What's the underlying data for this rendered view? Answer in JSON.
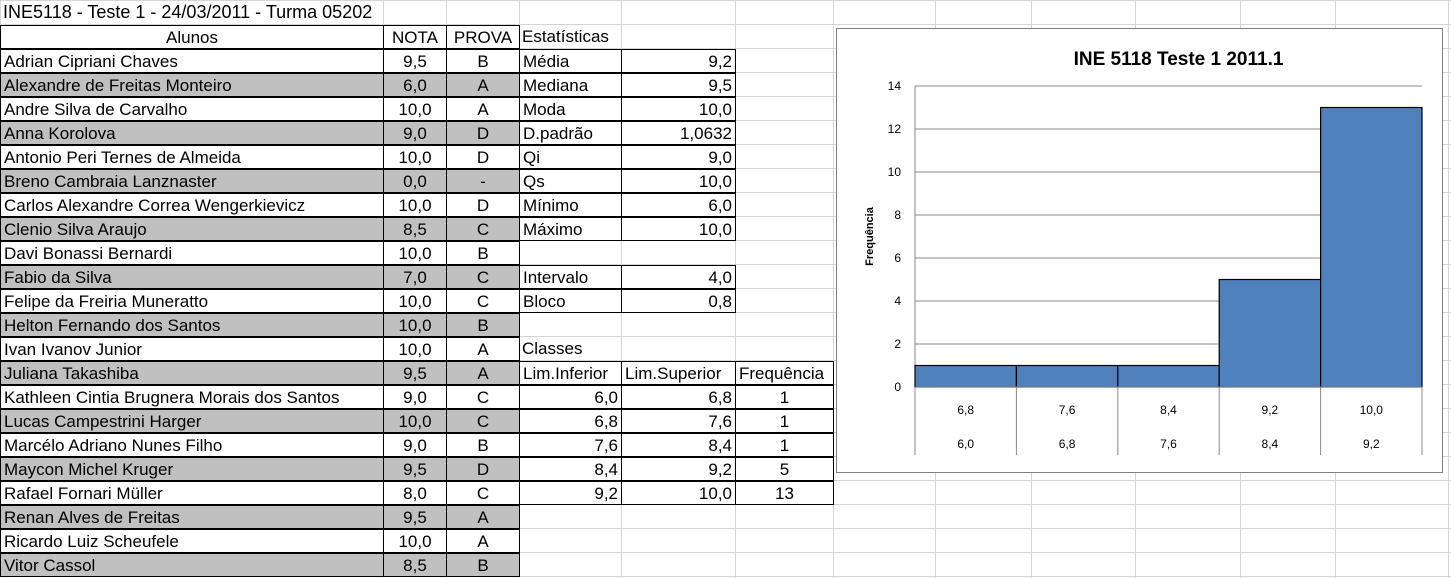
{
  "title": "INE5118 - Teste 1 - 24/03/2011 - Turma 05202",
  "headers": {
    "alunos": "Alunos",
    "nota": "NOTA",
    "prova": "PROVA",
    "estat": "Estatísticas"
  },
  "students": [
    {
      "name": "Adrian Cipriani Chaves",
      "nota": "9,5",
      "prova": "B"
    },
    {
      "name": "Alexandre de Freitas Monteiro",
      "nota": "6,0",
      "prova": "A"
    },
    {
      "name": "Andre Silva de Carvalho",
      "nota": "10,0",
      "prova": "A"
    },
    {
      "name": "Anna Korolova",
      "nota": "9,0",
      "prova": "D"
    },
    {
      "name": "Antonio Peri Ternes de Almeida",
      "nota": "10,0",
      "prova": "D"
    },
    {
      "name": "Breno Cambraia Lanznaster",
      "nota": "0,0",
      "prova": "-"
    },
    {
      "name": "Carlos Alexandre Correa Wengerkievicz",
      "nota": "10,0",
      "prova": "D"
    },
    {
      "name": "Clenio Silva Araujo",
      "nota": "8,5",
      "prova": "C"
    },
    {
      "name": "Davi Bonassi Bernardi",
      "nota": "10,0",
      "prova": "B"
    },
    {
      "name": "Fabio da Silva",
      "nota": "7,0",
      "prova": "C"
    },
    {
      "name": "Felipe da Freiria Muneratto",
      "nota": "10,0",
      "prova": "C"
    },
    {
      "name": "Helton Fernando dos Santos",
      "nota": "10,0",
      "prova": "B"
    },
    {
      "name": "Ivan Ivanov Junior",
      "nota": "10,0",
      "prova": "A"
    },
    {
      "name": "Juliana Takashiba",
      "nota": "9,5",
      "prova": "A"
    },
    {
      "name": "Kathleen Cintia Brugnera Morais dos Santos",
      "nota": "9,0",
      "prova": "C"
    },
    {
      "name": "Lucas Campestrini Harger",
      "nota": "10,0",
      "prova": "C"
    },
    {
      "name": "Marcélo Adriano Nunes Filho",
      "nota": "9,0",
      "prova": "B"
    },
    {
      "name": "Maycon Michel Kruger",
      "nota": "9,5",
      "prova": "D"
    },
    {
      "name": "Rafael Fornari Müller",
      "nota": "8,0",
      "prova": "C"
    },
    {
      "name": "Renan Alves de Freitas",
      "nota": "9,5",
      "prova": "A"
    },
    {
      "name": "Ricardo Luiz Scheufele",
      "nota": "10,0",
      "prova": "A"
    },
    {
      "name": "Vitor Cassol",
      "nota": "8,5",
      "prova": "B"
    }
  ],
  "stats": [
    {
      "label": "Média",
      "value": "9,2"
    },
    {
      "label": "Mediana",
      "value": "9,5"
    },
    {
      "label": "Moda",
      "value": "10,0"
    },
    {
      "label": "D.padrão",
      "value": "1,0632"
    },
    {
      "label": "Qi",
      "value": "9,0"
    },
    {
      "label": "Qs",
      "value": "10,0"
    },
    {
      "label": "Mínimo",
      "value": "6,0"
    },
    {
      "label": "Máximo",
      "value": "10,0"
    }
  ],
  "interval": {
    "label": "Intervalo",
    "value": "4,0"
  },
  "bloco": {
    "label": "Bloco",
    "value": "0,8"
  },
  "classes": {
    "title": "Classes",
    "headers": [
      "Lim.Inferior",
      "Lim.Superior",
      "Frequência"
    ],
    "rows": [
      [
        "6,0",
        "6,8",
        "1"
      ],
      [
        "6,8",
        "7,6",
        "1"
      ],
      [
        "7,6",
        "8,4",
        "1"
      ],
      [
        "8,4",
        "9,2",
        "5"
      ],
      [
        "9,2",
        "10,0",
        "13"
      ]
    ]
  },
  "chart_data": {
    "type": "bar",
    "title": "INE 5118 Teste 1 2011.1",
    "ylabel": "Frequência",
    "xlabel": "",
    "categories_upper": [
      "6,8",
      "7,6",
      "8,4",
      "9,2",
      "10,0"
    ],
    "categories_lower": [
      "6,0",
      "6,8",
      "7,6",
      "8,4",
      "9,2"
    ],
    "values": [
      1,
      1,
      1,
      5,
      13
    ],
    "ylim": [
      0,
      14
    ],
    "yticks": [
      0,
      2,
      4,
      6,
      8,
      10,
      12,
      14
    ],
    "grid": true,
    "bar_color": "#4f81bd"
  }
}
